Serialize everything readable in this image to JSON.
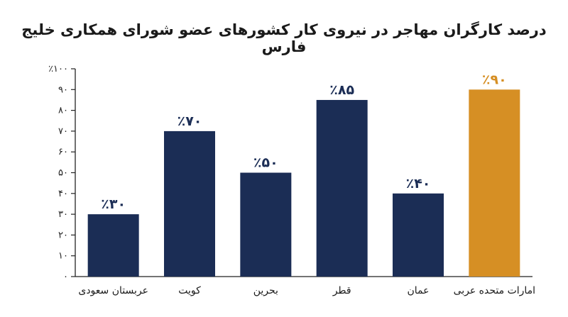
{
  "chart_data": {
    "type": "bar",
    "title": "درصد کارگران مهاجر در نیروی کار کشورهای عضو شورای همکاری خلیج فارس",
    "categories": [
      "عربستان سعودی",
      "کویت",
      "بحرین",
      "قطر",
      "عمان",
      "امارات متحده عربی"
    ],
    "values": [
      30,
      70,
      50,
      85,
      40,
      90
    ],
    "value_labels": [
      "٪۳۰",
      "٪۷۰",
      "٪۵۰",
      "٪۸۵",
      "٪۴۰",
      "٪۹۰"
    ],
    "y_ticks": [
      0,
      10,
      20,
      30,
      40,
      50,
      60,
      70,
      80,
      90,
      100
    ],
    "y_tick_labels": [
      "۰",
      "۱۰",
      "۲۰",
      "۳۰",
      "۴۰",
      "۵۰",
      "۶۰",
      "۷۰",
      "۸۰",
      "۹۰",
      "٪۱۰۰"
    ],
    "ylim": [
      0,
      100
    ],
    "grid": false,
    "colors": {
      "default": "#1b2d55",
      "highlight": "#d68f24",
      "highlight_index": 5
    }
  }
}
